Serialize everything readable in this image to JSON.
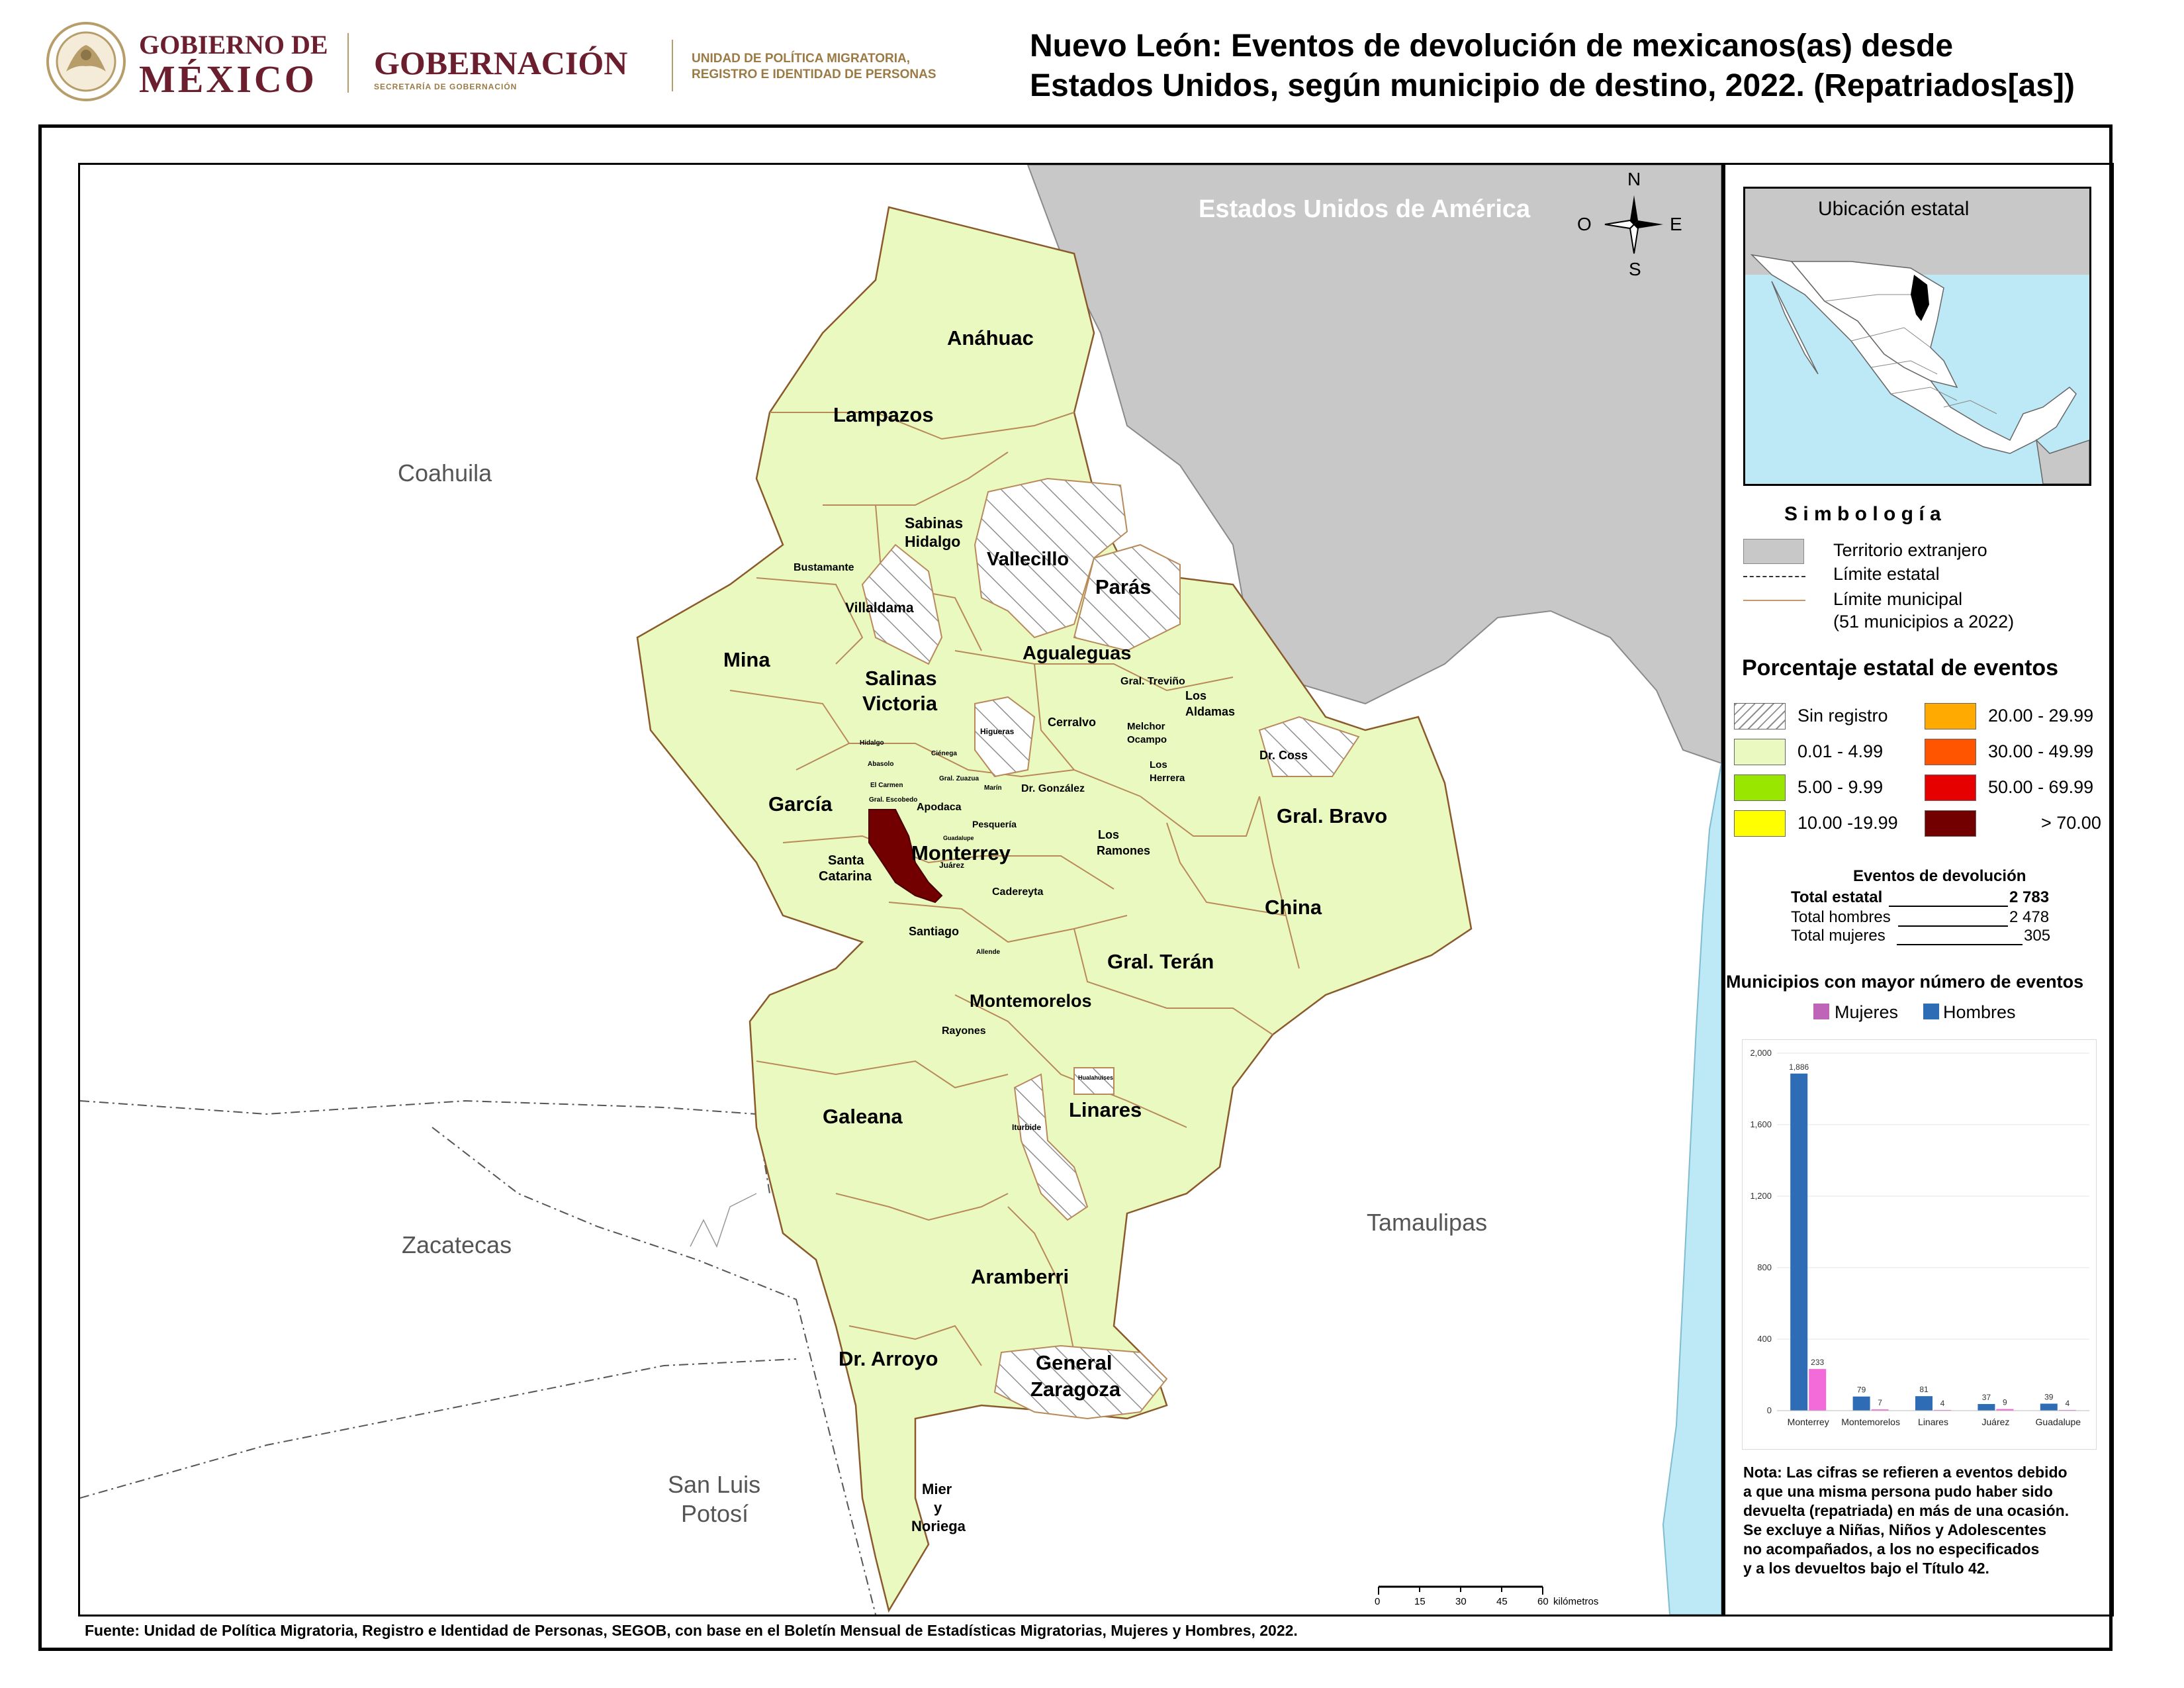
{
  "header": {
    "gob_line1": "GOBIERNO DE",
    "gob_line2": "MÉXICO",
    "gobernacion": "GOBERNACIÓN",
    "secretaria": "SECRETARÍA DE GOBERNACIÓN",
    "unidad_line1": "UNIDAD DE POLÍTICA MIGRATORIA,",
    "unidad_line2": "REGISTRO E IDENTIDAD DE PERSONAS",
    "title_line1": "Nuevo León: Eventos de devolución de mexicanos(as) desde",
    "title_line2": "Estados Unidos, según municipio de destino, 2022. (Repatriados[as])"
  },
  "map": {
    "usa_label": "Estados Unidos de América",
    "states": {
      "coahuila": "Coahuila",
      "zacatecas": "Zacatecas",
      "slp_1": "San Luis",
      "slp_2": "Potosí",
      "tamaulipas": "Tamaulipas"
    },
    "compass": {
      "n": "N",
      "s": "S",
      "e": "E",
      "o": "O"
    },
    "scale": {
      "ticks": [
        "0",
        "15",
        "30",
        "45",
        "60"
      ],
      "unit": "kilómetros"
    },
    "municipalities": {
      "anahuac": "Anáhuac",
      "lampazos": "Lampazos",
      "sabinas_1": "Sabinas",
      "sabinas_2": "Hidalgo",
      "vallecillo": "Vallecillo",
      "paras": "Parás",
      "bustamante": "Bustamante",
      "villaldama": "Villaldama",
      "mina": "Mina",
      "salinas_1": "Salinas",
      "salinas_2": "Victoria",
      "agualeguas": "Agualeguas",
      "trevino": "Gral. Treviño",
      "aldamas_1": "Los",
      "aldamas_2": "Aldamas",
      "higueras": "Higueras",
      "cerralvo": "Cerralvo",
      "melchor_1": "Melchor",
      "melchor_2": "Ocampo",
      "drcoss": "Dr. Coss",
      "herreras_1": "Los",
      "herreras_2": "Herrera",
      "hidalgo": "Hidalgo",
      "abasolo": "Abasolo",
      "carmen": "El Carmen",
      "escobedo": "Gral. Escobedo",
      "cienega": "Ciénega",
      "zuazua": "Gral. Zuazua",
      "marin": "Marín",
      "drgonzalez": "Dr. González",
      "garcia": "García",
      "apodaca": "Apodaca",
      "pesqueria": "Pesquería",
      "guadalupe": "Guadalupe",
      "monterrey": "Monterrey",
      "juarez": "Juárez",
      "santacatarina_1": "Santa",
      "santacatarina_2": "Catarina",
      "ramones_1": "Los",
      "ramones_2": "Ramones",
      "gralbravo": "Gral. Bravo",
      "cadereyta": "Cadereyta",
      "china": "China",
      "santiago": "Santiago",
      "allende": "Allende",
      "gralteran": "Gral. Terán",
      "montemorelos": "Montemorelos",
      "rayones": "Rayones",
      "hualahuises": "Hualahuises",
      "linares": "Linares",
      "galeana": "Galeana",
      "iturbide": "Iturbide",
      "aramberri": "Aramberri",
      "drarroyo": "Dr. Arroyo",
      "zaragoza_1": "General",
      "zaragoza_2": "Zaragoza",
      "mier_1": "Mier",
      "mier_2": "y",
      "mier_3": "Noriega"
    },
    "source": "Fuente: Unidad de Política Migratoria, Registro e Identidad de Personas, SEGOB, con base en el Boletín Mensual de Estadísticas Migratorias, Mujeres y Hombres, 2022."
  },
  "sidebar": {
    "inset_title": "Ubicación estatal",
    "symbology_title": "S i m b o l o g í a",
    "symbols": {
      "foreign": "Territorio extranjero",
      "state_limit": "Límite estatal",
      "muni_limit": "Límite municipal",
      "muni_count": "(51 municipios a 2022)"
    },
    "percent_title": "Porcentaje estatal de eventos",
    "classes": [
      {
        "label": "Sin registro",
        "color": "hatch"
      },
      {
        "label": "0.01  - 4.99",
        "color": "#eaf9c0"
      },
      {
        "label": "5.00  - 9.99",
        "color": "#99e600"
      },
      {
        "label": "10.00 -19.99",
        "color": "#ffff00"
      },
      {
        "label": "20.00 - 29.99",
        "color": "#ffaa00"
      },
      {
        "label": "30.00 - 49.99",
        "color": "#ff5500"
      },
      {
        "label": "50.00 - 69.99",
        "color": "#e60000"
      },
      {
        "label": "> 70.00",
        "color": "#730000"
      }
    ],
    "events": {
      "title": "Eventos de devolución",
      "total_label": "Total estatal",
      "total_value": "2 783",
      "men_label": "Total hombres",
      "men_value": "2 478",
      "women_label": "Total mujeres",
      "women_value": "305"
    },
    "chart_title": "Municipios con mayor número de eventos",
    "note": [
      "Nota: Las cifras se refieren a eventos debido",
      "a que una misma persona pudo haber sido",
      "devuelta (repatriada) en más de una ocasión.",
      "Se excluye a Niñas, Niños y Adolescentes",
      "no acompañados, a los no especificados",
      "y a los devueltos bajo el Título 42."
    ]
  },
  "chart_data": {
    "type": "bar",
    "categories": [
      "Monterrey",
      "Montemorelos",
      "Linares",
      "Juárez",
      "Guadalupe"
    ],
    "series": [
      {
        "name": "Hombres",
        "values": [
          1886,
          79,
          81,
          37,
          39
        ],
        "color": "#2e6db5"
      },
      {
        "name": "Mujeres",
        "values": [
          233,
          7,
          4,
          9,
          4
        ],
        "color": "#f26bd9"
      }
    ],
    "value_labels": {
      "Hombres": [
        "1,886",
        "79",
        "81",
        "37",
        "39"
      ],
      "Mujeres": [
        "233",
        "7",
        "4",
        "9",
        "4"
      ]
    },
    "ylim": [
      0,
      2000
    ],
    "yticks": [
      "0",
      "400",
      "800",
      "1,200",
      "1,600",
      "2,000"
    ],
    "legend": "top"
  }
}
